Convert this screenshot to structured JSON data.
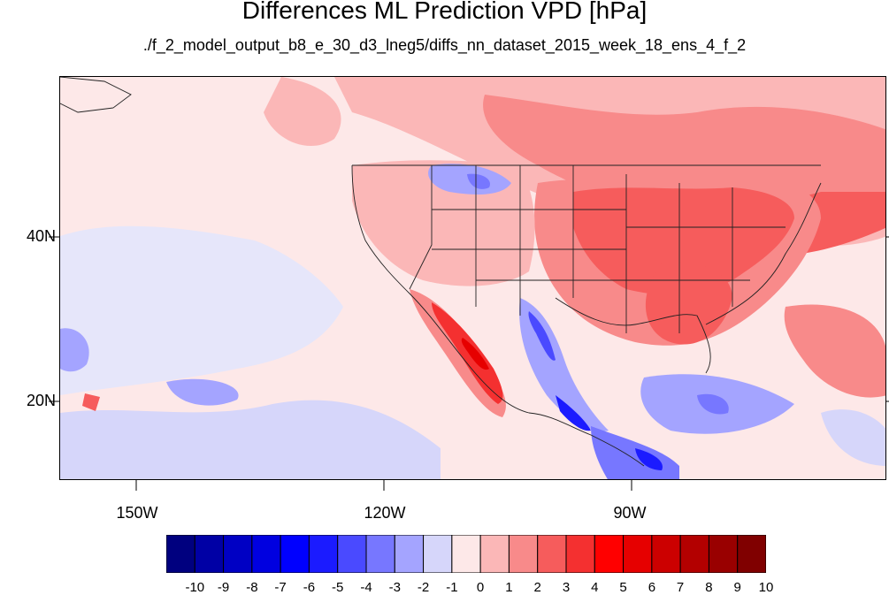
{
  "title": "Differences ML Prediction VPD [hPa]",
  "subtitle": "./f_2_model_output_b8_e_30_d3_lneg5/diffs_nn_dataset_2015_week_18_ens_4_f_2",
  "axes": {
    "lat_labels": [
      {
        "text": "40N",
        "lat": 40
      },
      {
        "text": "20N",
        "lat": 20
      }
    ],
    "lon_labels": [
      {
        "text": "150W",
        "lon": -150
      },
      {
        "text": "120W",
        "lon": -120
      },
      {
        "text": "90W",
        "lon": -90
      }
    ],
    "lon_range": [
      -159.5,
      -59.5
    ],
    "lat_range": [
      10.5,
      59.5
    ]
  },
  "colorbar": {
    "labels": [
      "-10",
      "-9",
      "-8",
      "-7",
      "-6",
      "-5",
      "-4",
      "-3",
      "-2",
      "-1",
      "0",
      "1",
      "2",
      "3",
      "4",
      "5",
      "6",
      "7",
      "8",
      "9",
      "10"
    ],
    "colors": [
      "#00007f",
      "#0000a5",
      "#0000c4",
      "#0000e0",
      "#0000ff",
      "#1b1bff",
      "#4a4aff",
      "#7777ff",
      "#a4a4ff",
      "#d6d6fa",
      "#fde8e8",
      "#fbb7b7",
      "#f88a8a",
      "#f65c5c",
      "#f43030",
      "#ff0000",
      "#e60000",
      "#cc0000",
      "#b30000",
      "#990000",
      "#800000"
    ]
  }
}
